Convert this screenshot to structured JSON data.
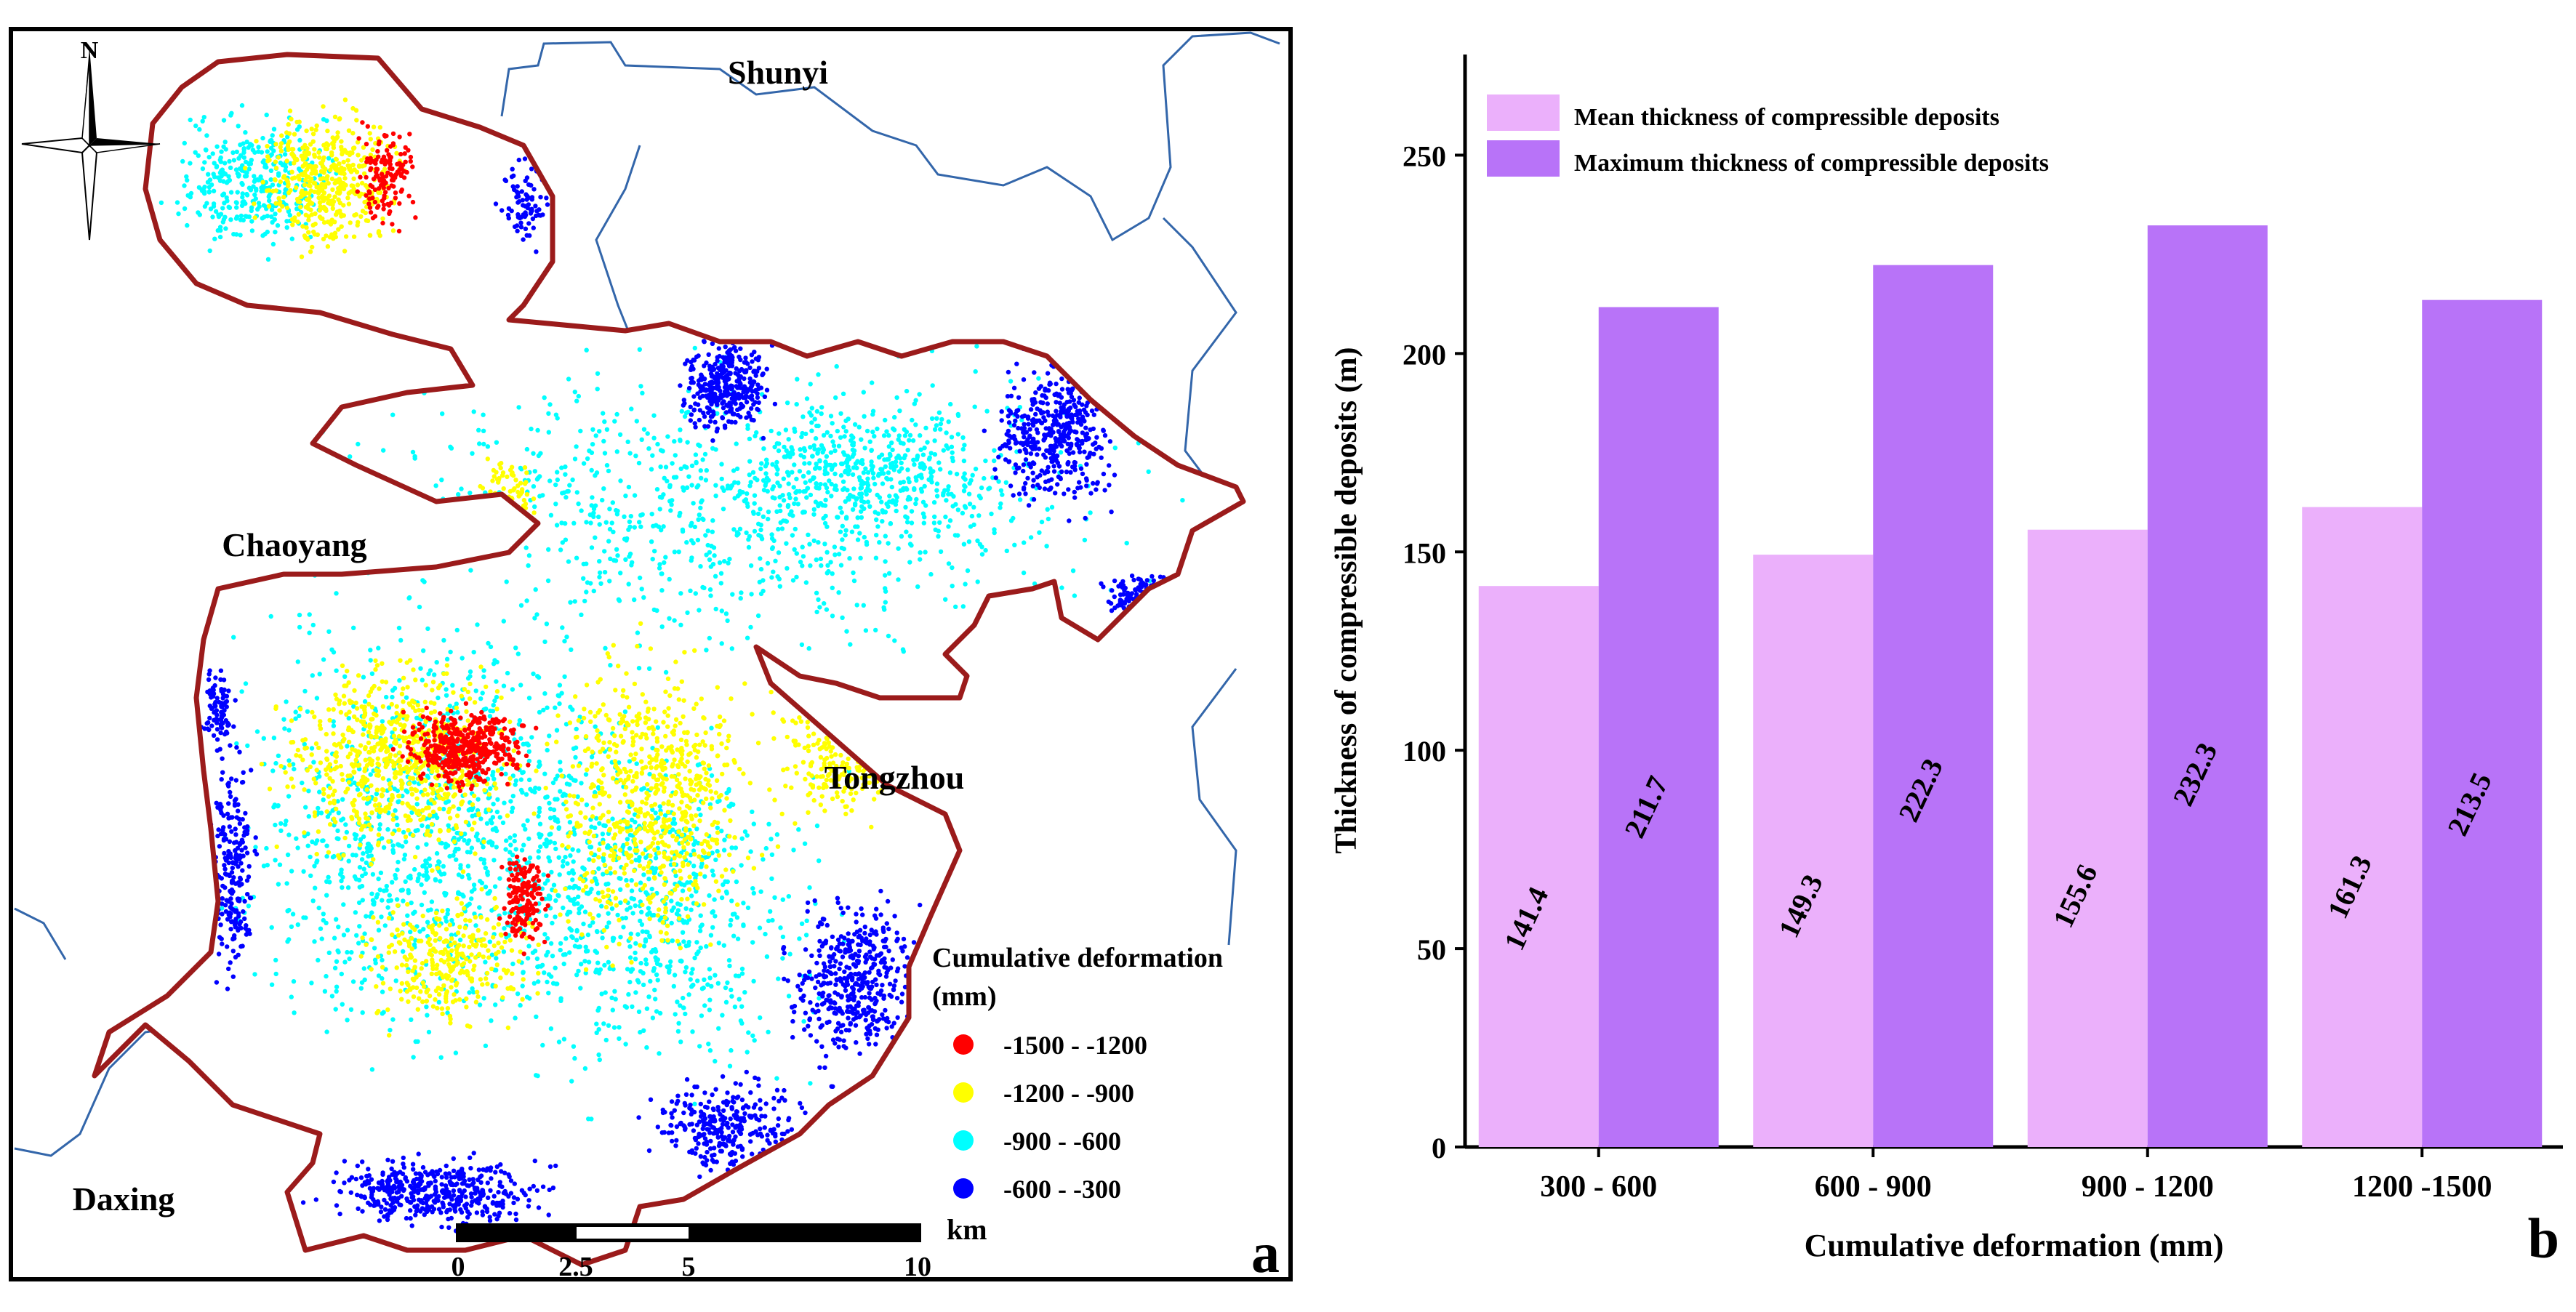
{
  "panel_a": {
    "panel_label": "a",
    "north_label": "N",
    "districts": {
      "shunyi": "Shunyi",
      "chaoyang": "Chaoyang",
      "tongzhou": "Tongzhou",
      "daxing": "Daxing"
    },
    "legend": {
      "title_line1": "Cumulative deformation",
      "title_line2": "(mm)",
      "items": [
        {
          "label": "-1500 - -1200",
          "color": "#ff0000"
        },
        {
          "label": "-1200 - -900",
          "color": "#ffff00"
        },
        {
          "label": "-900 - -600",
          "color": "#00ffff"
        },
        {
          "label": "-600 - -300",
          "color": "#0000ff"
        }
      ]
    },
    "scale_bar": {
      "unit": "km",
      "ticks": [
        "0",
        "2.5",
        "5",
        "10"
      ]
    },
    "colors": {
      "boundary": "#9b1b1b",
      "district_lines": "#3366aa"
    }
  },
  "panel_b": {
    "panel_label": "b",
    "chart_data": {
      "type": "bar",
      "categories": [
        "300 - 600",
        "600 - 900",
        "900 - 1200",
        "1200 -1500"
      ],
      "series": [
        {
          "name": "Mean thickness of compressible deposits",
          "values": [
            141.4,
            149.3,
            155.6,
            161.3
          ],
          "color": "#ebb0fb"
        },
        {
          "name": "Maximum thickness of compressible deposits",
          "values": [
            211.7,
            222.3,
            232.3,
            213.5
          ],
          "color": "#b873f8"
        }
      ],
      "value_labels": [
        [
          "141.4",
          "149.3",
          "155.6",
          "161.3"
        ],
        [
          "211.7",
          "222.3",
          "232.3",
          "213.5"
        ]
      ],
      "xlabel": "Cumulative deformation (mm)",
      "ylabel": "Thickness of compressible deposits (m)",
      "ylim": [
        0,
        275
      ],
      "yticks": [
        0,
        50,
        100,
        150,
        200,
        250
      ],
      "ytick_labels": [
        "0",
        "50",
        "100",
        "150",
        "200",
        "250"
      ],
      "legend_position": "top-left",
      "grid": false
    }
  }
}
